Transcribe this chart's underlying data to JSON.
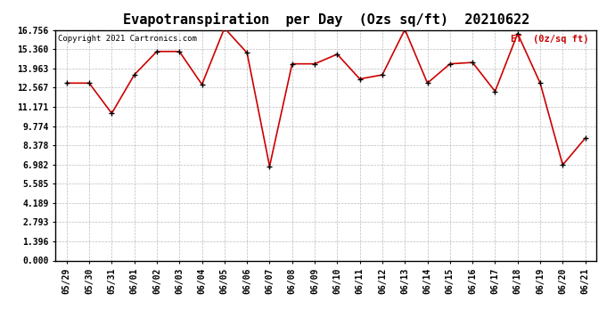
{
  "title": "Evapotranspiration  per Day  (Ozs sq/ft)  20210622",
  "copyright": "Copyright 2021 Cartronics.com",
  "legend_label": "ET  (0z/sq ft)",
  "dates": [
    "05/29",
    "05/30",
    "05/31",
    "06/01",
    "06/02",
    "06/03",
    "06/04",
    "06/05",
    "06/06",
    "06/07",
    "06/08",
    "06/09",
    "06/10",
    "06/11",
    "06/12",
    "06/13",
    "06/14",
    "06/15",
    "06/16",
    "06/17",
    "06/18",
    "06/19",
    "06/20",
    "06/21"
  ],
  "et_values": [
    12.9,
    12.9,
    10.7,
    13.5,
    15.2,
    15.2,
    12.8,
    16.9,
    15.1,
    6.85,
    14.3,
    14.3,
    15.0,
    13.2,
    13.5,
    16.8,
    12.9,
    14.3,
    14.4,
    12.3,
    16.5,
    12.9,
    6.95,
    8.9
  ],
  "y_ticks": [
    0.0,
    1.396,
    2.793,
    4.189,
    5.585,
    6.982,
    8.378,
    9.774,
    11.171,
    12.567,
    13.963,
    15.36,
    16.756
  ],
  "ylim": [
    0.0,
    16.756
  ],
  "line_color": "#cc0000",
  "marker_color": "#000000",
  "bg_color": "#ffffff",
  "grid_color": "#bbbbbb",
  "title_fontsize": 11,
  "tick_fontsize": 7,
  "copyright_fontsize": 6.5,
  "legend_fontsize": 7.5
}
